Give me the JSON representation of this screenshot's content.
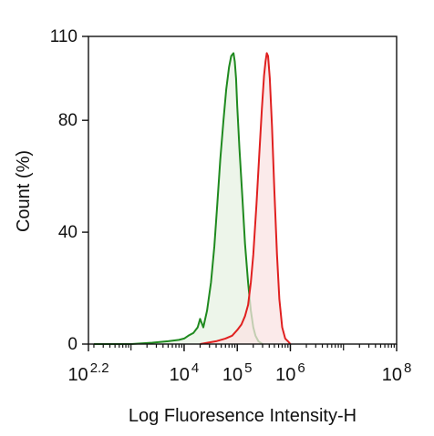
{
  "chart_data": {
    "type": "area",
    "title": "",
    "xlabel": "Log Fluoresence Intensity-H",
    "ylabel": "Count  (%)",
    "xscale": "log",
    "xlim": [
      158,
      100000000
    ],
    "ylim": [
      0,
      110
    ],
    "grid": false,
    "legend": "none",
    "y_ticks": [
      {
        "value": 0,
        "label": "0"
      },
      {
        "value": 40,
        "label": "40"
      },
      {
        "value": 80,
        "label": "80"
      },
      {
        "value": 110,
        "label": "110"
      }
    ],
    "x_ticks": [
      {
        "value": 158,
        "base": "10",
        "exp": "2.2"
      },
      {
        "value": 10000,
        "base": "10",
        "exp": "4"
      },
      {
        "value": 100000,
        "base": "10",
        "exp": "5"
      },
      {
        "value": 1000000,
        "base": "10",
        "exp": "6"
      },
      {
        "value": 100000000,
        "base": "10",
        "exp": "8"
      }
    ],
    "series": [
      {
        "color": "#1f8a1f",
        "fill": "#e7f1e3",
        "x": [
          200,
          1000,
          2500,
          5000,
          8000,
          10000,
          12000,
          15000,
          18000,
          20000,
          23000,
          27000,
          32000,
          37000,
          42000,
          48000,
          55000,
          62000,
          70000,
          77000,
          85000,
          90000,
          95000,
          100000,
          110000,
          125000,
          140000,
          160000,
          180000,
          200000,
          220000,
          250000,
          300000
        ],
        "y": [
          0,
          0,
          0.5,
          1,
          1.5,
          2,
          3,
          4,
          6,
          9,
          6,
          12,
          22,
          35,
          50,
          66,
          80,
          91,
          99,
          103,
          104,
          101,
          95,
          85,
          70,
          52,
          36,
          22,
          12,
          6,
          3,
          1,
          0
        ]
      },
      {
        "color": "#e02020",
        "fill": "#f9e3e3",
        "x": [
          20000,
          40000,
          60000,
          80000,
          100000,
          120000,
          140000,
          160000,
          180000,
          200000,
          230000,
          260000,
          290000,
          320000,
          340000,
          360000,
          380000,
          410000,
          450000,
          500000,
          560000,
          620000,
          700000,
          800000,
          900000,
          1000000
        ],
        "y": [
          0,
          1,
          2,
          3,
          5,
          7,
          10,
          14,
          22,
          32,
          50,
          68,
          84,
          96,
          101,
          104,
          103,
          95,
          78,
          55,
          32,
          16,
          6,
          2,
          1,
          0
        ]
      }
    ]
  }
}
